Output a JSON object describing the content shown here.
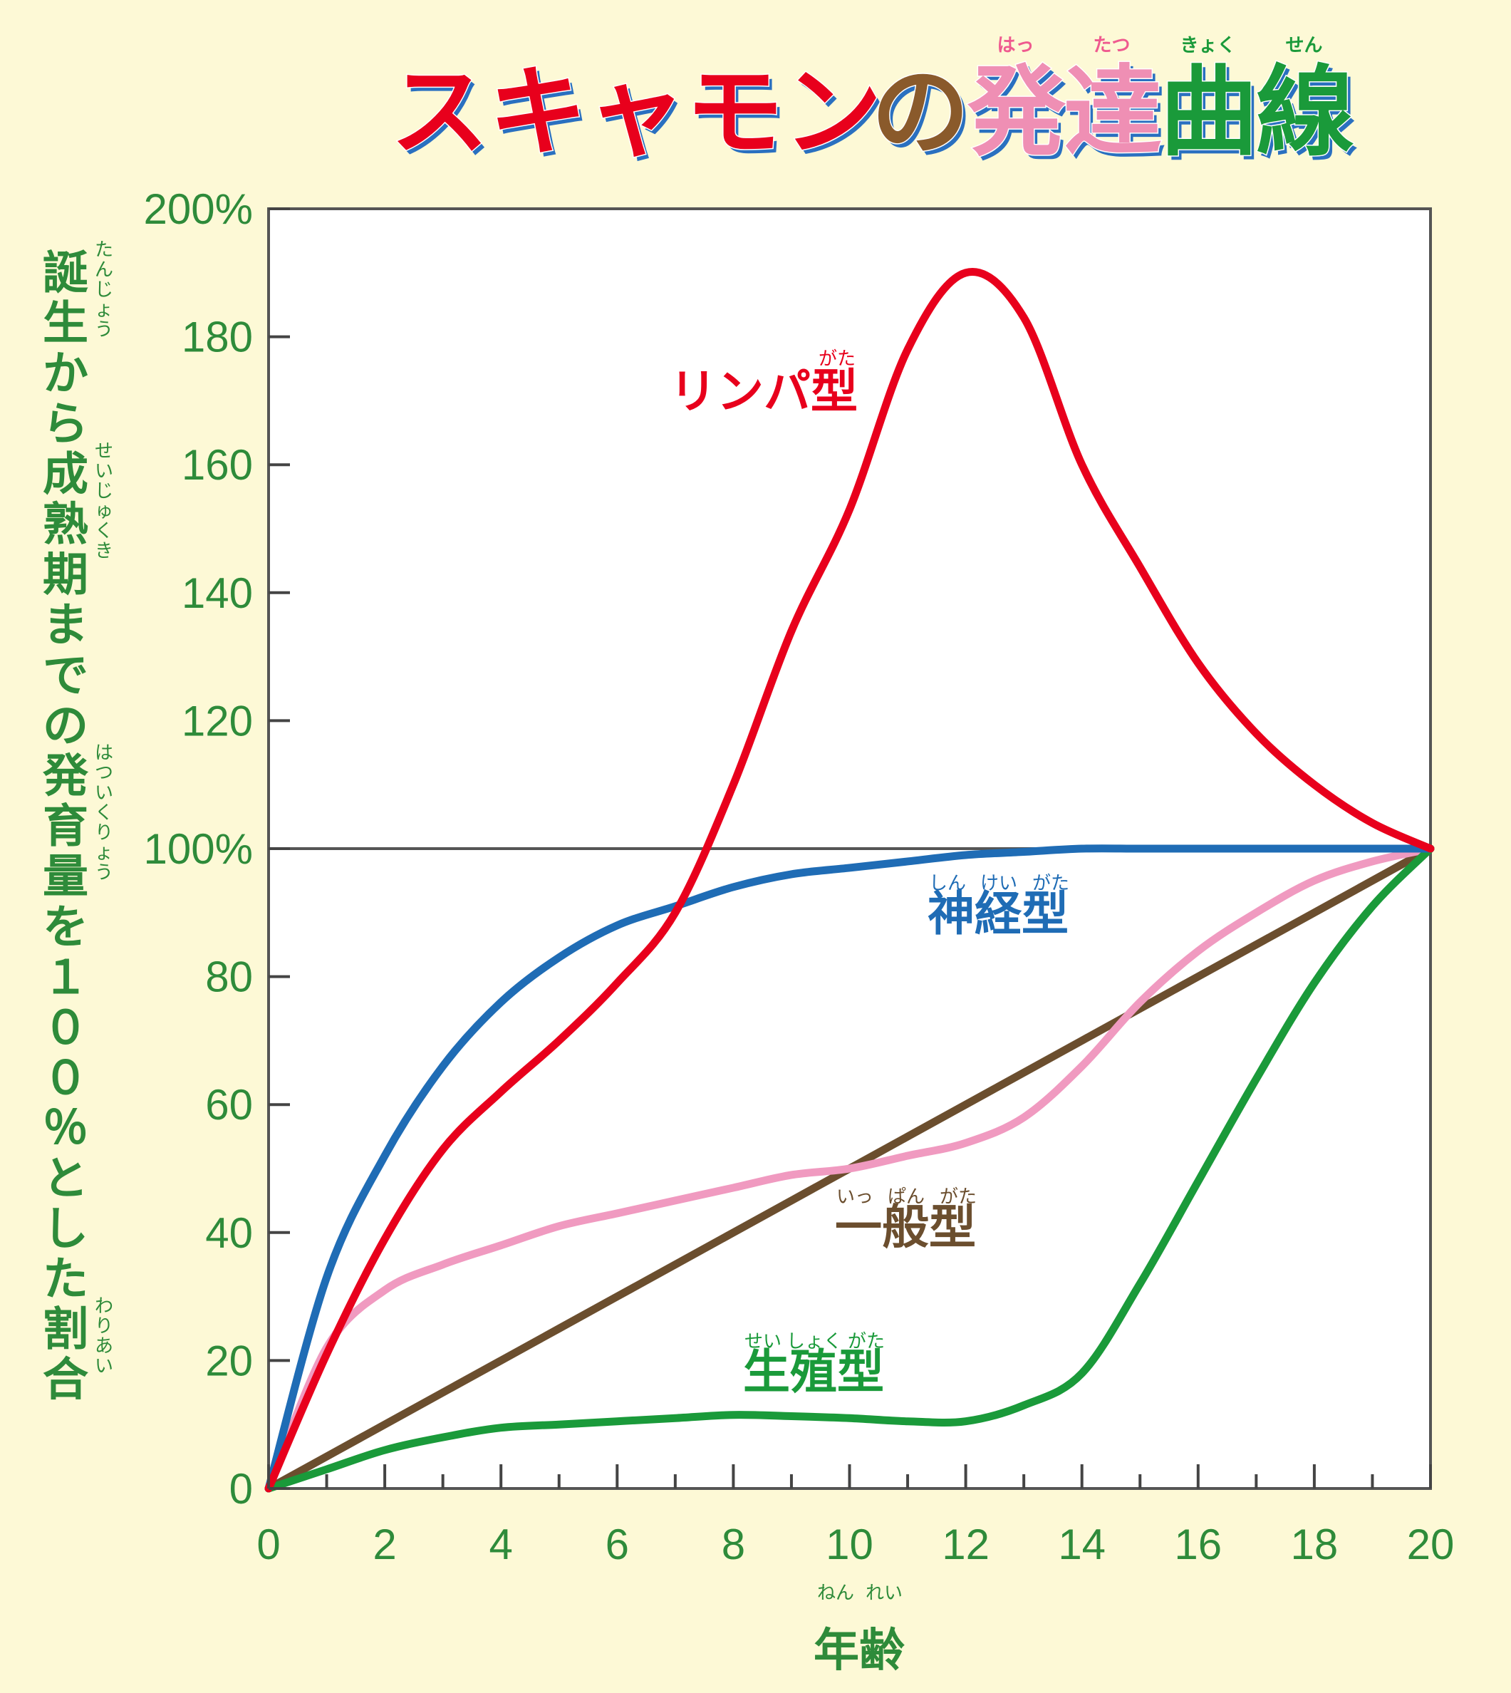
{
  "title": {
    "segments": [
      {
        "text": "スキャモン",
        "color": "#e8001c"
      },
      {
        "text": "の",
        "color": "#8a5a2b"
      },
      {
        "text": "発",
        "color": "#ef8fb4"
      },
      {
        "text": "達",
        "color": "#ef8fb4"
      },
      {
        "text": "曲",
        "color": "#1a9a3a"
      },
      {
        "text": "線",
        "color": "#1a9a3a"
      }
    ],
    "ruby": [
      "はっ",
      "たつ",
      "きょく",
      "せん"
    ],
    "ruby_color_a": "#ef5a8f",
    "ruby_color_b": "#1a9a3a",
    "shadow_color": "#2a70c0"
  },
  "chart_data": {
    "type": "line",
    "xlabel": "年齢",
    "xlabel_ruby": [
      "ねん",
      "れい"
    ],
    "ylabel": "誕生から成熟期までの発育量を１００％とした割合",
    "ylabel_ruby": [
      "たんじょう",
      "せいじゅくき",
      "はついくりょう",
      "わりあい"
    ],
    "xlim": [
      0,
      20
    ],
    "ylim": [
      0,
      200
    ],
    "x_ticks": [
      0,
      2,
      4,
      6,
      8,
      10,
      12,
      14,
      16,
      18,
      20
    ],
    "x_minor_ticks": [
      1,
      3,
      5,
      7,
      9,
      11,
      13,
      15,
      17,
      19
    ],
    "x_tick_labels": [
      "0",
      "2",
      "4",
      "6",
      "8",
      "10",
      "12",
      "14",
      "16",
      "18",
      "20"
    ],
    "y_ticks": [
      0,
      20,
      40,
      60,
      80,
      100,
      120,
      140,
      160,
      180,
      200
    ],
    "y_tick_labels": [
      "0",
      "20",
      "40",
      "60",
      "80",
      "100%",
      "120",
      "140",
      "160",
      "180",
      "200%"
    ],
    "reference_line": 100,
    "grid": false,
    "series": [
      {
        "name": "リンパ型",
        "ruby": "がた",
        "color": "#e8001c",
        "x": [
          0,
          1,
          2,
          3,
          4,
          5,
          6,
          7,
          8,
          9,
          10,
          11,
          12,
          13,
          14,
          15,
          16,
          17,
          18,
          19,
          20
        ],
        "values": [
          0,
          21,
          39,
          53,
          62,
          70,
          79,
          90,
          110,
          134,
          153,
          178,
          190,
          183,
          160,
          144,
          129,
          118,
          110,
          104,
          100
        ]
      },
      {
        "name": "神経型",
        "ruby": [
          "しん",
          "けい",
          "がた"
        ],
        "color": "#1f6cb5",
        "x": [
          0,
          1,
          2,
          3,
          4,
          5,
          6,
          7,
          8,
          9,
          10,
          11,
          12,
          13,
          14,
          15,
          16,
          17,
          18,
          19,
          20
        ],
        "values": [
          0,
          33,
          52,
          66,
          76,
          83,
          88,
          91,
          94,
          96,
          97,
          98,
          99,
          99.5,
          100,
          100,
          100,
          100,
          100,
          100,
          100
        ]
      },
      {
        "name": "一般型",
        "ruby": [
          "いっ",
          "ぱん",
          "がた"
        ],
        "color": "#6b4e2e",
        "x": [
          0,
          2,
          4,
          6,
          8,
          10,
          12,
          14,
          16,
          18,
          20
        ],
        "values": [
          0,
          10,
          20,
          30,
          40,
          50,
          60,
          70,
          80,
          90,
          100
        ]
      },
      {
        "name": "",
        "color": "#f09ac0",
        "x": [
          0,
          1,
          2,
          3,
          4,
          5,
          6,
          7,
          8,
          9,
          10,
          11,
          12,
          13,
          14,
          15,
          16,
          17,
          18,
          19,
          20
        ],
        "values": [
          0,
          22,
          31,
          35,
          38,
          41,
          43,
          45,
          47,
          49,
          50,
          52,
          54,
          58,
          66,
          76,
          84,
          90,
          95,
          98,
          100
        ]
      },
      {
        "name": "生殖型",
        "ruby": [
          "せい",
          "しょく",
          "がた"
        ],
        "color": "#1a9a3a",
        "x": [
          0,
          1,
          2,
          3,
          4,
          5,
          6,
          7,
          8,
          9,
          10,
          11,
          12,
          13,
          14,
          15,
          16,
          17,
          18,
          19,
          20
        ],
        "values": [
          0,
          3,
          6,
          8,
          9.5,
          10,
          10.5,
          11,
          11.5,
          11.3,
          11,
          10.5,
          10.5,
          13,
          18,
          32,
          48,
          64,
          79,
          91,
          100
        ]
      }
    ]
  }
}
